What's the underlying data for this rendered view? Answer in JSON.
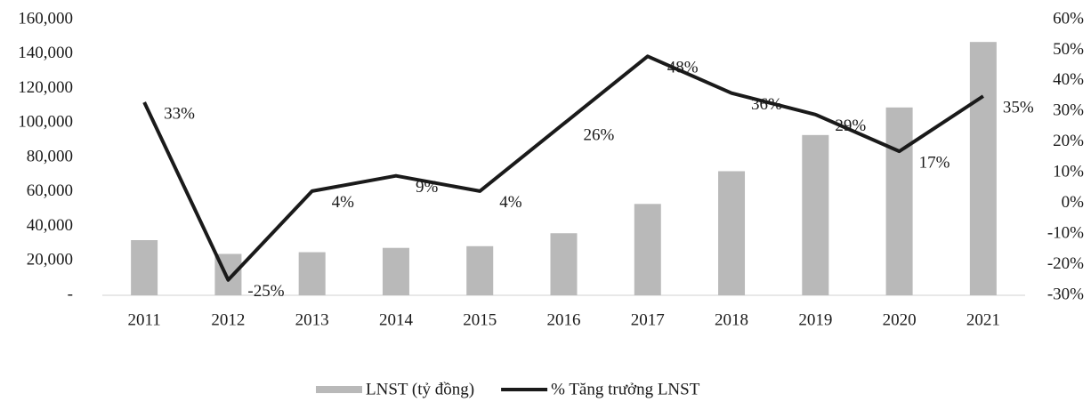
{
  "chart_data": {
    "type": "bar",
    "categories": [
      "2011",
      "2012",
      "2013",
      "2014",
      "2015",
      "2016",
      "2017",
      "2018",
      "2019",
      "2020",
      "2021"
    ],
    "series": [
      {
        "name": "LNST (tỷ đồng)",
        "type": "bar",
        "color": "#b9b9b9",
        "values": [
          32000,
          24000,
          25000,
          27500,
          28500,
          36000,
          53000,
          72000,
          93000,
          109000,
          147000
        ]
      },
      {
        "name": "% Tăng trưởng LNST",
        "type": "line",
        "axis": "y2",
        "color": "#1a1a1a",
        "values": [
          33,
          -25,
          4,
          9,
          4,
          26,
          48,
          36,
          29,
          17,
          35
        ],
        "value_labels": [
          "33%",
          "-25%",
          "4%",
          "9%",
          "4%",
          "26%",
          "48%",
          "36%",
          "29%",
          "17%",
          "35%"
        ]
      }
    ],
    "ylim": [
      0,
      160000
    ],
    "yticks": [
      {
        "value": 0,
        "label": "-"
      },
      {
        "value": 20000,
        "label": "20,000"
      },
      {
        "value": 40000,
        "label": "40,000"
      },
      {
        "value": 60000,
        "label": "60,000"
      },
      {
        "value": 80000,
        "label": "80,000"
      },
      {
        "value": 100000,
        "label": "100,000"
      },
      {
        "value": 120000,
        "label": "120,000"
      },
      {
        "value": 140000,
        "label": "140,000"
      },
      {
        "value": 160000,
        "label": "160,000"
      }
    ],
    "y2lim": [
      -30,
      60
    ],
    "y2ticks": [
      {
        "value": -30,
        "label": "-30%"
      },
      {
        "value": -20,
        "label": "-20%"
      },
      {
        "value": -10,
        "label": "-10%"
      },
      {
        "value": 0,
        "label": "0%"
      },
      {
        "value": 10,
        "label": "10%"
      },
      {
        "value": 20,
        "label": "20%"
      },
      {
        "value": 30,
        "label": "30%"
      },
      {
        "value": 40,
        "label": "40%"
      },
      {
        "value": 50,
        "label": "50%"
      },
      {
        "value": 60,
        "label": "60%"
      }
    ],
    "legend": "bottom"
  }
}
